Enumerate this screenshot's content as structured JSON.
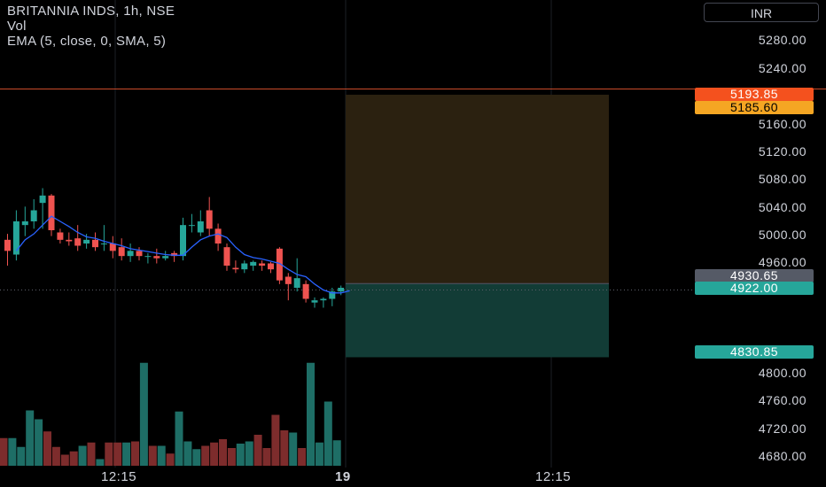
{
  "legend": {
    "symbol_line": "BRITANNIA INDS, 1h, NSE",
    "vol_line": "Vol",
    "ema_line": "EMA (5, close, 0, SMA, 5)"
  },
  "currency_button": "INR",
  "colors": {
    "up": "#26a69a",
    "down": "#ef5350",
    "vol_up": "#1e6e66",
    "vol_down": "#7d2c2c",
    "ema": "#2962ff",
    "stop_zone": "#2b2110",
    "target_zone": "#123c36",
    "stop_line": "#c94a2a"
  },
  "chart_data": {
    "type": "candlestick",
    "y_axis": {
      "range": [
        4655,
        5315
      ],
      "ticks": [
        "5280.00",
        "5240.00",
        "5160.00",
        "5120.00",
        "5080.00",
        "5040.00",
        "5000.00",
        "4960.00",
        "4800.00",
        "4760.00",
        "4720.00",
        "4680.00"
      ]
    },
    "x_axis": {
      "ticks": [
        "12:15",
        "19",
        "12:15"
      ]
    },
    "price_labels": {
      "stop": "5193.85",
      "entry_top": "5185.60",
      "last": "4930.65",
      "current": "4922.00",
      "target": "4830.85"
    },
    "candles": [
      {
        "o": 4990,
        "h": 4998,
        "l": 4955,
        "c": 4975,
        "v": 0.25
      },
      {
        "o": 4970,
        "h": 5030,
        "l": 4962,
        "c": 5015,
        "v": 0.25
      },
      {
        "o": 5010,
        "h": 5035,
        "l": 4995,
        "c": 5015,
        "v": 0.17
      },
      {
        "o": 5015,
        "h": 5045,
        "l": 5005,
        "c": 5030,
        "v": 0.5
      },
      {
        "o": 5040,
        "h": 5060,
        "l": 5005,
        "c": 5050,
        "v": 0.42
      },
      {
        "o": 5050,
        "h": 5052,
        "l": 4995,
        "c": 5003,
        "v": 0.31
      },
      {
        "o": 5000,
        "h": 5005,
        "l": 4985,
        "c": 4990,
        "v": 0.17
      },
      {
        "o": 4990,
        "h": 5000,
        "l": 4982,
        "c": 4988,
        "v": 0.1
      },
      {
        "o": 4992,
        "h": 5010,
        "l": 4975,
        "c": 4982,
        "v": 0.13
      },
      {
        "o": 4985,
        "h": 4998,
        "l": 4978,
        "c": 4990,
        "v": 0.18
      },
      {
        "o": 4990,
        "h": 5000,
        "l": 4975,
        "c": 4980,
        "v": 0.21
      },
      {
        "o": 4985,
        "h": 5010,
        "l": 4975,
        "c": 4985,
        "v": 0.06
      },
      {
        "o": 4985,
        "h": 4995,
        "l": 4965,
        "c": 4975,
        "v": 0.21
      },
      {
        "o": 4980,
        "h": 4992,
        "l": 4962,
        "c": 4968,
        "v": 0.21
      },
      {
        "o": 4968,
        "h": 4985,
        "l": 4960,
        "c": 4975,
        "v": 0.21
      },
      {
        "o": 4975,
        "h": 4980,
        "l": 4962,
        "c": 4968,
        "v": 0.22
      },
      {
        "o": 4968,
        "h": 4972,
        "l": 4958,
        "c": 4968,
        "v": 0.93
      },
      {
        "o": 4968,
        "h": 4978,
        "l": 4958,
        "c": 4965,
        "v": 0.18
      },
      {
        "o": 4965,
        "h": 4975,
        "l": 4962,
        "c": 4968,
        "v": 0.18
      },
      {
        "o": 4972,
        "h": 4975,
        "l": 4960,
        "c": 4968,
        "v": 0.11
      },
      {
        "o": 4968,
        "h": 5020,
        "l": 4962,
        "c": 5010,
        "v": 0.49
      },
      {
        "o": 5010,
        "h": 5025,
        "l": 5000,
        "c": 5010,
        "v": 0.22
      },
      {
        "o": 5000,
        "h": 5030,
        "l": 4995,
        "c": 5015,
        "v": 0.15
      },
      {
        "o": 5030,
        "h": 5048,
        "l": 4995,
        "c": 5005,
        "v": 0.18
      },
      {
        "o": 5005,
        "h": 5012,
        "l": 4975,
        "c": 4985,
        "v": 0.21
      },
      {
        "o": 4980,
        "h": 4985,
        "l": 4948,
        "c": 4955,
        "v": 0.24
      },
      {
        "o": 4952,
        "h": 4962,
        "l": 4945,
        "c": 4950,
        "v": 0.16
      },
      {
        "o": 4950,
        "h": 4962,
        "l": 4945,
        "c": 4958,
        "v": 0.2
      },
      {
        "o": 4955,
        "h": 4962,
        "l": 4948,
        "c": 4960,
        "v": 0.22
      },
      {
        "o": 4958,
        "h": 4962,
        "l": 4948,
        "c": 4955,
        "v": 0.28
      },
      {
        "o": 4958,
        "h": 4960,
        "l": 4945,
        "c": 4950,
        "v": 0.16
      },
      {
        "o": 4978,
        "h": 4980,
        "l": 4930,
        "c": 4935,
        "v": 0.46
      },
      {
        "o": 4940,
        "h": 4945,
        "l": 4908,
        "c": 4930,
        "v": 0.32
      },
      {
        "o": 4925,
        "h": 4965,
        "l": 4920,
        "c": 4938,
        "v": 0.3
      },
      {
        "o": 4930,
        "h": 4935,
        "l": 4905,
        "c": 4910,
        "v": 0.16
      },
      {
        "o": 4905,
        "h": 4912,
        "l": 4898,
        "c": 4908,
        "v": 0.93
      },
      {
        "o": 4908,
        "h": 4912,
        "l": 4898,
        "c": 4910,
        "v": 0.21
      },
      {
        "o": 4910,
        "h": 4925,
        "l": 4900,
        "c": 4920,
        "v": 0.58
      },
      {
        "o": 4920,
        "h": 4928,
        "l": 4915,
        "c": 4925,
        "v": 0.23
      }
    ],
    "ema": [
      4975,
      4990,
      4998,
      5010,
      5022,
      5015,
      5008,
      5000,
      4994,
      4992,
      4988,
      4985,
      4982,
      4978,
      4976,
      4974,
      4972,
      4970,
      4969,
      4969,
      4980,
      4990,
      4995,
      4998,
      4993,
      4980,
      4970,
      4966,
      4964,
      4961,
      4958,
      4950,
      4943,
      4940,
      4930,
      4922,
      4918,
      4918,
      4921
    ],
    "position": {
      "stop": 5193.85,
      "entry": 4930.65,
      "target": 4830.85
    },
    "stop_level": 5193.85,
    "current_level": 4922.0
  }
}
